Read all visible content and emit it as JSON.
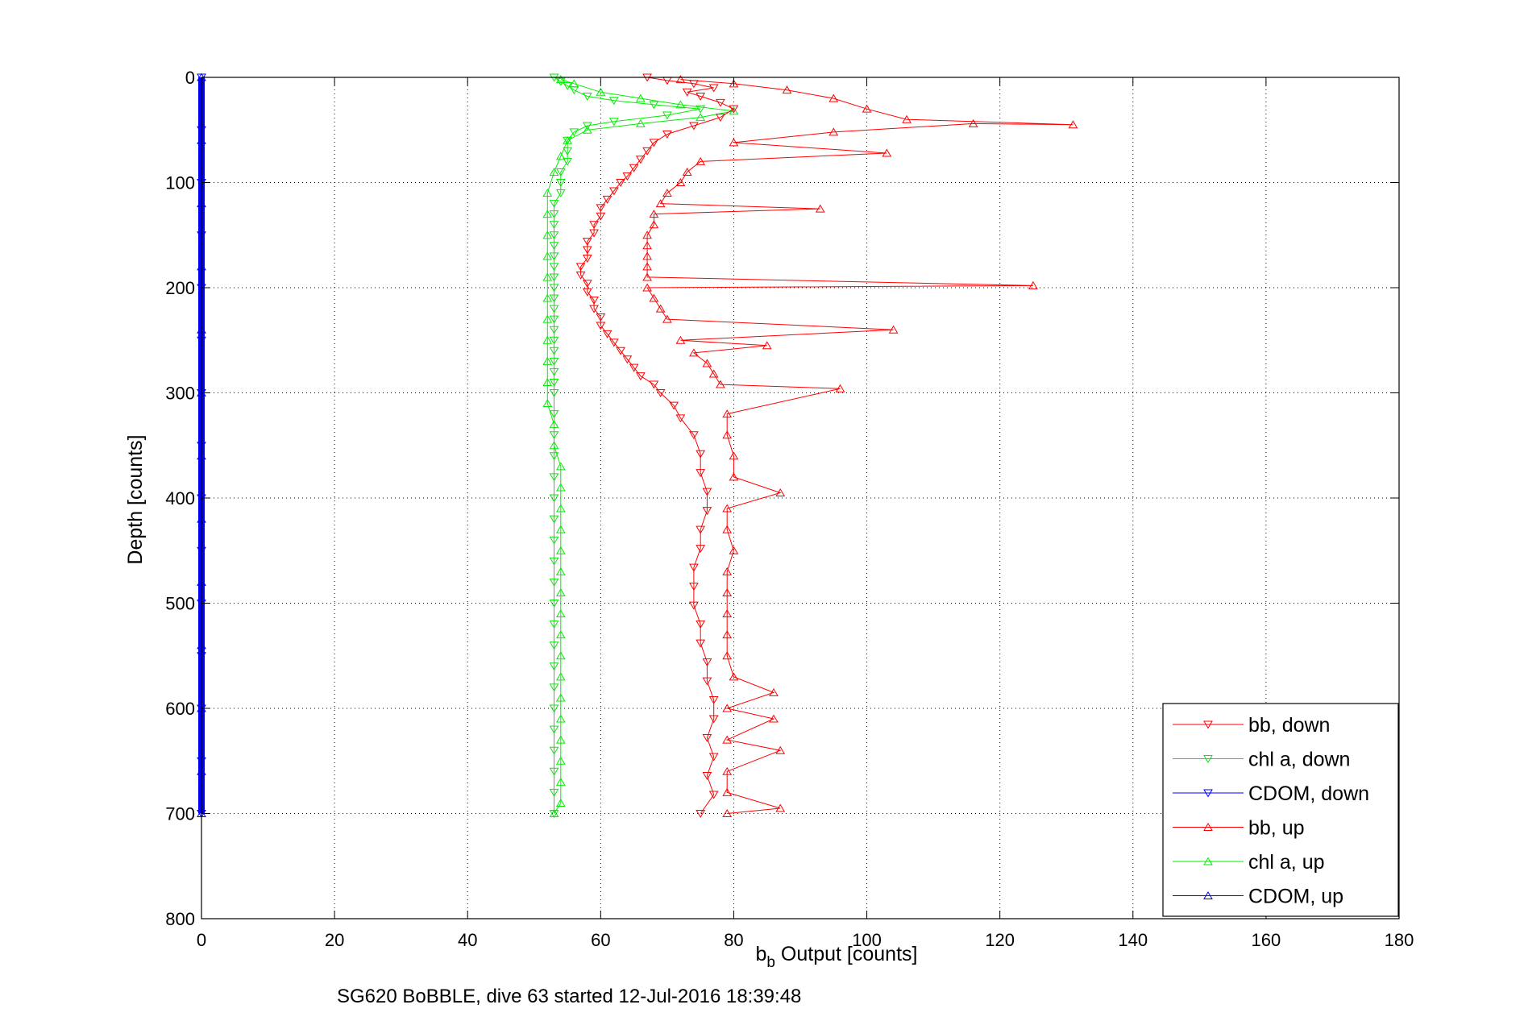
{
  "caption": "SG620 BoBBLE, dive 63 started 12-Jul-2016 18:39:48",
  "chart_data": {
    "type": "scatter",
    "xlabel_main": "b",
    "xlabel_sub": "b",
    "xlabel_rest": " Output [counts]",
    "ylabel": "Depth [counts]",
    "xlim": [
      0,
      180
    ],
    "ylim": [
      0,
      800
    ],
    "y_reversed": true,
    "grid": true,
    "legend_position": "bottom-right",
    "xticks": [
      "0",
      "20",
      "40",
      "60",
      "80",
      "100",
      "120",
      "140",
      "160",
      "180"
    ],
    "yticks": [
      "0",
      "100",
      "200",
      "300",
      "400",
      "500",
      "600",
      "700",
      "800"
    ],
    "colors": {
      "red": "#ff0000",
      "green": "#00ee00",
      "blue": "#0000ff"
    },
    "series": [
      {
        "name": "bb, down",
        "color": "#ff0000",
        "marker": "triangle-down",
        "points": [
          [
            67,
            0
          ],
          [
            70,
            3
          ],
          [
            74,
            6
          ],
          [
            77,
            10
          ],
          [
            73,
            14
          ],
          [
            75,
            18
          ],
          [
            78,
            24
          ],
          [
            80,
            30
          ],
          [
            78,
            38
          ],
          [
            74,
            46
          ],
          [
            70,
            54
          ],
          [
            68,
            62
          ],
          [
            67,
            70
          ],
          [
            66,
            78
          ],
          [
            65,
            86
          ],
          [
            64,
            94
          ],
          [
            63,
            100
          ],
          [
            62,
            108
          ],
          [
            61,
            116
          ],
          [
            60,
            124
          ],
          [
            60,
            132
          ],
          [
            59,
            140
          ],
          [
            59,
            148
          ],
          [
            58,
            156
          ],
          [
            58,
            164
          ],
          [
            58,
            172
          ],
          [
            57,
            180
          ],
          [
            57,
            188
          ],
          [
            58,
            196
          ],
          [
            58,
            204
          ],
          [
            59,
            212
          ],
          [
            59,
            220
          ],
          [
            60,
            228
          ],
          [
            60,
            236
          ],
          [
            61,
            244
          ],
          [
            62,
            252
          ],
          [
            63,
            260
          ],
          [
            64,
            268
          ],
          [
            65,
            276
          ],
          [
            66,
            284
          ],
          [
            68,
            292
          ],
          [
            69,
            300
          ],
          [
            71,
            312
          ],
          [
            72,
            324
          ],
          [
            74,
            340
          ],
          [
            75,
            358
          ],
          [
            75,
            376
          ],
          [
            76,
            394
          ],
          [
            76,
            412
          ],
          [
            75,
            430
          ],
          [
            75,
            448
          ],
          [
            74,
            466
          ],
          [
            74,
            484
          ],
          [
            74,
            502
          ],
          [
            75,
            520
          ],
          [
            75,
            538
          ],
          [
            76,
            556
          ],
          [
            76,
            574
          ],
          [
            77,
            592
          ],
          [
            77,
            610
          ],
          [
            76,
            628
          ],
          [
            77,
            646
          ],
          [
            76,
            664
          ],
          [
            77,
            682
          ],
          [
            75,
            700
          ]
        ]
      },
      {
        "name": "chl a, down",
        "color": "#00ee00",
        "marker": "triangle-down",
        "points": [
          [
            53,
            0
          ],
          [
            54,
            4
          ],
          [
            55,
            8
          ],
          [
            56,
            12
          ],
          [
            58,
            18
          ],
          [
            62,
            22
          ],
          [
            68,
            26
          ],
          [
            75,
            30
          ],
          [
            70,
            36
          ],
          [
            62,
            42
          ],
          [
            58,
            46
          ],
          [
            56,
            52
          ],
          [
            55,
            60
          ],
          [
            55,
            70
          ],
          [
            55,
            80
          ],
          [
            54,
            90
          ],
          [
            54,
            100
          ],
          [
            54,
            110
          ],
          [
            53,
            120
          ],
          [
            53,
            130
          ],
          [
            53,
            140
          ],
          [
            53,
            150
          ],
          [
            53,
            160
          ],
          [
            53,
            170
          ],
          [
            53,
            180
          ],
          [
            53,
            190
          ],
          [
            53,
            200
          ],
          [
            53,
            210
          ],
          [
            53,
            220
          ],
          [
            53,
            230
          ],
          [
            53,
            240
          ],
          [
            53,
            250
          ],
          [
            53,
            260
          ],
          [
            53,
            270
          ],
          [
            53,
            280
          ],
          [
            53,
            290
          ],
          [
            53,
            300
          ],
          [
            53,
            320
          ],
          [
            53,
            340
          ],
          [
            53,
            360
          ],
          [
            53,
            380
          ],
          [
            53,
            400
          ],
          [
            53,
            420
          ],
          [
            53,
            440
          ],
          [
            53,
            460
          ],
          [
            53,
            480
          ],
          [
            53,
            500
          ],
          [
            53,
            520
          ],
          [
            53,
            540
          ],
          [
            53,
            560
          ],
          [
            53,
            580
          ],
          [
            53,
            600
          ],
          [
            53,
            620
          ],
          [
            53,
            640
          ],
          [
            53,
            660
          ],
          [
            53,
            680
          ],
          [
            53,
            700
          ]
        ]
      },
      {
        "name": "CDOM, down",
        "color": "#0000ff",
        "marker": "triangle-down",
        "points": [
          [
            0,
            0
          ],
          [
            0,
            50
          ],
          [
            0,
            100
          ],
          [
            0,
            150
          ],
          [
            0,
            200
          ],
          [
            0,
            250
          ],
          [
            0,
            300
          ],
          [
            0,
            350
          ],
          [
            0,
            400
          ],
          [
            0,
            450
          ],
          [
            0,
            500
          ],
          [
            0,
            550
          ],
          [
            0,
            600
          ],
          [
            0,
            650
          ],
          [
            0,
            700
          ]
        ]
      },
      {
        "name": "bb, up",
        "color": "#ff0000",
        "marker": "triangle-up",
        "points": [
          [
            72,
            2
          ],
          [
            80,
            6
          ],
          [
            88,
            12
          ],
          [
            95,
            20
          ],
          [
            100,
            30
          ],
          [
            106,
            40
          ],
          [
            131,
            45
          ],
          [
            116,
            44
          ],
          [
            95,
            52
          ],
          [
            80,
            62
          ],
          [
            103,
            72
          ],
          [
            75,
            80
          ],
          [
            73,
            90
          ],
          [
            72,
            100
          ],
          [
            70,
            110
          ],
          [
            69,
            120
          ],
          [
            93,
            125
          ],
          [
            68,
            130
          ],
          [
            68,
            140
          ],
          [
            67,
            150
          ],
          [
            67,
            160
          ],
          [
            67,
            170
          ],
          [
            67,
            180
          ],
          [
            67,
            190
          ],
          [
            125,
            198
          ],
          [
            67,
            200
          ],
          [
            68,
            210
          ],
          [
            69,
            220
          ],
          [
            70,
            230
          ],
          [
            104,
            240
          ],
          [
            72,
            250
          ],
          [
            85,
            255
          ],
          [
            74,
            262
          ],
          [
            76,
            272
          ],
          [
            77,
            282
          ],
          [
            78,
            292
          ],
          [
            96,
            296
          ],
          [
            79,
            320
          ],
          [
            79,
            340
          ],
          [
            80,
            360
          ],
          [
            80,
            380
          ],
          [
            87,
            395
          ],
          [
            79,
            410
          ],
          [
            79,
            430
          ],
          [
            80,
            450
          ],
          [
            79,
            470
          ],
          [
            79,
            490
          ],
          [
            79,
            510
          ],
          [
            79,
            530
          ],
          [
            79,
            550
          ],
          [
            80,
            570
          ],
          [
            86,
            585
          ],
          [
            79,
            600
          ],
          [
            86,
            610
          ],
          [
            79,
            630
          ],
          [
            87,
            640
          ],
          [
            79,
            660
          ],
          [
            79,
            680
          ],
          [
            87,
            695
          ],
          [
            79,
            700
          ]
        ]
      },
      {
        "name": "chl a, up",
        "color": "#00ee00",
        "marker": "triangle-up",
        "points": [
          [
            54,
            2
          ],
          [
            56,
            6
          ],
          [
            60,
            14
          ],
          [
            66,
            20
          ],
          [
            72,
            26
          ],
          [
            80,
            32
          ],
          [
            75,
            38
          ],
          [
            66,
            44
          ],
          [
            58,
            50
          ],
          [
            55,
            60
          ],
          [
            54,
            75
          ],
          [
            53,
            90
          ],
          [
            52,
            110
          ],
          [
            52,
            130
          ],
          [
            52,
            150
          ],
          [
            52,
            170
          ],
          [
            52,
            190
          ],
          [
            52,
            210
          ],
          [
            52,
            230
          ],
          [
            52,
            250
          ],
          [
            52,
            270
          ],
          [
            52,
            290
          ],
          [
            52,
            310
          ],
          [
            53,
            330
          ],
          [
            53,
            350
          ],
          [
            54,
            370
          ],
          [
            54,
            390
          ],
          [
            54,
            410
          ],
          [
            54,
            430
          ],
          [
            54,
            450
          ],
          [
            54,
            470
          ],
          [
            54,
            490
          ],
          [
            54,
            510
          ],
          [
            54,
            530
          ],
          [
            54,
            550
          ],
          [
            54,
            570
          ],
          [
            54,
            590
          ],
          [
            54,
            610
          ],
          [
            54,
            630
          ],
          [
            54,
            650
          ],
          [
            54,
            670
          ],
          [
            54,
            690
          ],
          [
            53,
            700
          ]
        ]
      },
      {
        "name": "CDOM, up",
        "color": "#0000ff",
        "marker": "triangle-up",
        "points": [
          [
            0,
            0
          ],
          [
            0,
            60
          ],
          [
            0,
            120
          ],
          [
            0,
            180
          ],
          [
            0,
            240
          ],
          [
            0,
            300
          ],
          [
            0,
            360
          ],
          [
            0,
            420
          ],
          [
            0,
            480
          ],
          [
            0,
            540
          ],
          [
            0,
            600
          ],
          [
            0,
            660
          ],
          [
            0,
            700
          ]
        ]
      }
    ]
  }
}
